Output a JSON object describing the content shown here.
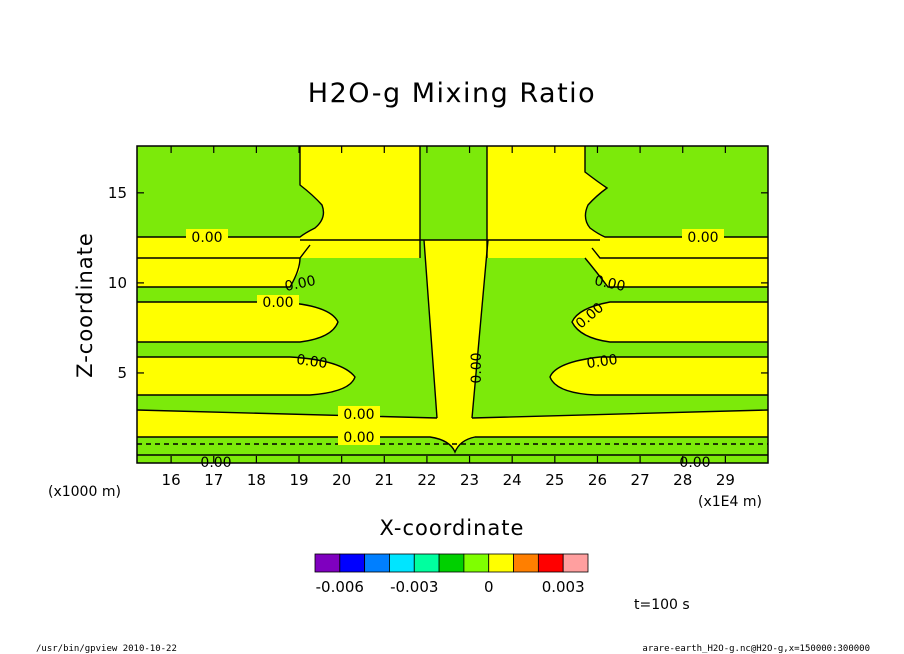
{
  "chart_data": {
    "type": "heatmap",
    "title": "H2O-g Mixing Ratio",
    "xlabel": "X-coordinate",
    "ylabel": "Z-coordinate",
    "x_unit_left": "(x1000 m)",
    "x_unit_right": "(x1E4 m)",
    "xlim": [
      15.2,
      30.0
    ],
    "ylim": [
      0,
      17.6
    ],
    "x_ticks": [
      "16",
      "17",
      "18",
      "19",
      "20",
      "21",
      "22",
      "23",
      "24",
      "25",
      "26",
      "27",
      "28",
      "29"
    ],
    "y_ticks": [
      "5",
      "10",
      "15"
    ],
    "contour_level_label": "0.00",
    "colorbar": {
      "colors": [
        "#7f00bf",
        "#0000ff",
        "#007fff",
        "#00e5ff",
        "#00ff9f",
        "#00d000",
        "#7fff00",
        "#ffff00",
        "#ff7f00",
        "#ff0000",
        "#ff9f9f"
      ],
      "tick_labels": [
        "-0.006",
        "-0.003",
        "0",
        "0.003"
      ]
    },
    "time_label": "t=100 s",
    "green_color": "#7cea0a",
    "yellow_color": "#ffff00"
  },
  "footer": {
    "left": "/usr/bin/gpview   2010-10-22",
    "right": "arare-earth_H2O-g.nc@H2O-g,x=150000:300000"
  }
}
